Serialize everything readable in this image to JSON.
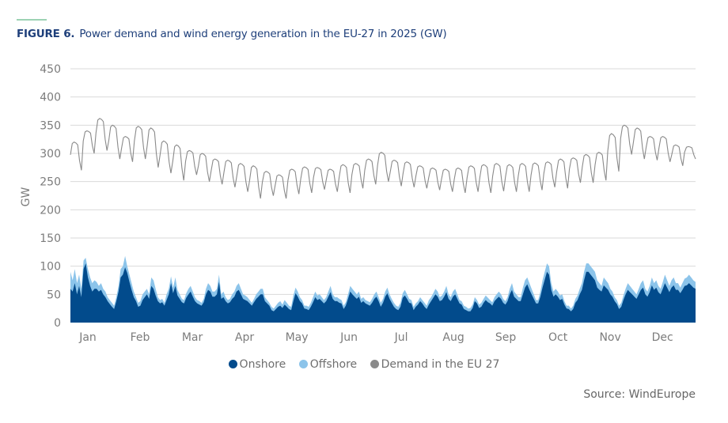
{
  "figure": {
    "label": "FIGURE 6.",
    "title": "Power demand and wind energy generation in the EU-27 in 2025 (GW)",
    "source": "Source: WindEurope"
  },
  "legend": [
    {
      "name": "Onshore",
      "color": "#024b8c"
    },
    {
      "name": "Offshore",
      "color": "#8cc4ea"
    },
    {
      "name": "Demand in the EU 27",
      "color": "#8a8a8a"
    }
  ],
  "chart_data": {
    "type": "area",
    "title": "Power demand and wind energy generation in the EU-27 in 2025 (GW)",
    "xlabel": "",
    "ylabel": "GW",
    "ylim": [
      0,
      450
    ],
    "yticks": [
      0,
      50,
      100,
      150,
      200,
      250,
      300,
      350,
      400,
      450
    ],
    "xticks": [
      "Jan",
      "Feb",
      "Mar",
      "Apr",
      "May",
      "Jun",
      "Jul",
      "Aug",
      "Sep",
      "Oct",
      "Nov",
      "Dec"
    ],
    "grid": true,
    "legend_position": "bottom",
    "x_unit": "approx. 2 samples per week-day cycle, Jan to mid-Dec 2025 (values estimated)",
    "series": [
      {
        "name": "Demand in the EU 27",
        "type": "line",
        "color": "#8a8a8a",
        "weekly_high": [
          320,
          340,
          362,
          350,
          330,
          348,
          345,
          322,
          315,
          305,
          300,
          290,
          288,
          282,
          278,
          268,
          262,
          272,
          276,
          275,
          272,
          280,
          282,
          290,
          302,
          288,
          285,
          278,
          274,
          272,
          274,
          278,
          280,
          282,
          280,
          282,
          283,
          285,
          290,
          292,
          298,
          302,
          335,
          350,
          345,
          330,
          330,
          315,
          312
        ],
        "weekly_low": [
          270,
          300,
          305,
          290,
          285,
          290,
          275,
          265,
          252,
          262,
          250,
          245,
          240,
          232,
          220,
          225,
          220,
          228,
          230,
          236,
          232,
          230,
          238,
          245,
          250,
          242,
          240,
          238,
          235,
          232,
          230,
          232,
          230,
          233,
          232,
          232,
          235,
          240,
          238,
          248,
          248,
          252,
          268,
          298,
          290,
          288,
          285,
          278,
          290
        ]
      },
      {
        "name": "Offshore",
        "type": "stacked-area",
        "color": "#8cc4ea",
        "values": [
          90,
          75,
          95,
          70,
          85,
          60,
          110,
          115,
          95,
          80,
          70,
          75,
          72,
          65,
          70,
          60,
          55,
          45,
          40,
          35,
          30,
          45,
          65,
          95,
          100,
          118,
          100,
          85,
          70,
          55,
          45,
          35,
          38,
          50,
          55,
          60,
          50,
          80,
          75,
          60,
          45,
          40,
          42,
          35,
          50,
          60,
          82,
          62,
          80,
          58,
          50,
          42,
          40,
          52,
          60,
          65,
          55,
          45,
          40,
          38,
          35,
          42,
          60,
          70,
          65,
          55,
          55,
          60,
          85,
          50,
          55,
          45,
          40,
          42,
          50,
          55,
          65,
          70,
          60,
          50,
          48,
          45,
          40,
          35,
          42,
          50,
          55,
          60,
          60,
          45,
          40,
          35,
          28,
          25,
          30,
          35,
          38,
          32,
          40,
          35,
          30,
          28,
          48,
          62,
          55,
          45,
          40,
          30,
          30,
          28,
          35,
          45,
          55,
          48,
          50,
          45,
          40,
          45,
          55,
          65,
          50,
          45,
          45,
          42,
          40,
          30,
          36,
          50,
          65,
          60,
          55,
          50,
          55,
          42,
          45,
          40,
          38,
          36,
          42,
          50,
          55,
          45,
          35,
          42,
          55,
          62,
          50,
          42,
          35,
          30,
          28,
          35,
          52,
          58,
          50,
          42,
          40,
          28,
          34,
          38,
          45,
          40,
          35,
          30,
          40,
          45,
          52,
          60,
          55,
          45,
          48,
          55,
          65,
          50,
          45,
          55,
          60,
          50,
          40,
          38,
          30,
          28,
          25,
          26,
          32,
          45,
          40,
          32,
          35,
          42,
          48,
          44,
          40,
          36,
          45,
          50,
          55,
          50,
          42,
          38,
          45,
          60,
          70,
          55,
          50,
          45,
          45,
          62,
          75,
          80,
          70,
          60,
          50,
          40,
          40,
          55,
          75,
          90,
          105,
          100,
          70,
          55,
          60,
          55,
          48,
          50,
          38,
          30,
          30,
          25,
          30,
          42,
          48,
          60,
          70,
          90,
          105,
          105,
          100,
          95,
          90,
          75,
          70,
          65,
          80,
          75,
          70,
          60,
          55,
          45,
          40,
          30,
          35,
          48,
          60,
          70,
          65,
          60,
          55,
          50,
          60,
          70,
          75,
          60,
          55,
          65,
          80,
          70,
          75,
          65,
          60,
          72,
          85,
          75,
          65,
          75,
          80,
          70,
          70,
          62,
          70,
          78,
          80,
          85,
          80,
          75,
          72
        ]
      },
      {
        "name": "Onshore",
        "type": "stacked-area",
        "color": "#024b8c",
        "values": [
          60,
          55,
          70,
          50,
          65,
          45,
          95,
          105,
          80,
          65,
          55,
          60,
          60,
          55,
          58,
          50,
          45,
          38,
          33,
          28,
          24,
          38,
          55,
          80,
          85,
          98,
          88,
          72,
          58,
          45,
          38,
          28,
          30,
          40,
          45,
          50,
          42,
          65,
          60,
          48,
          38,
          34,
          36,
          30,
          40,
          50,
          70,
          52,
          65,
          48,
          42,
          36,
          34,
          44,
          50,
          55,
          46,
          38,
          34,
          32,
          30,
          36,
          50,
          58,
          55,
          46,
          46,
          50,
          72,
          42,
          45,
          38,
          34,
          36,
          42,
          46,
          55,
          58,
          50,
          42,
          40,
          38,
          34,
          30,
          36,
          42,
          46,
          50,
          50,
          38,
          34,
          30,
          22,
          20,
          24,
          28,
          30,
          26,
          32,
          28,
          24,
          22,
          38,
          52,
          46,
          38,
          34,
          25,
          24,
          22,
          28,
          36,
          45,
          40,
          42,
          38,
          34,
          38,
          46,
          54,
          42,
          38,
          38,
          35,
          34,
          24,
          30,
          42,
          55,
          50,
          46,
          42,
          46,
          35,
          38,
          34,
          32,
          30,
          35,
          42,
          46,
          38,
          28,
          35,
          46,
          52,
          42,
          35,
          28,
          24,
          22,
          28,
          44,
          48,
          42,
          35,
          34,
          22,
          28,
          32,
          38,
          34,
          28,
          24,
          32,
          38,
          44,
          50,
          46,
          38,
          40,
          46,
          54,
          42,
          38,
          46,
          50,
          42,
          34,
          32,
          24,
          22,
          20,
          20,
          26,
          38,
          34,
          26,
          28,
          35,
          40,
          36,
          34,
          30,
          38,
          42,
          46,
          42,
          35,
          32,
          38,
          50,
          58,
          46,
          42,
          38,
          38,
          50,
          62,
          68,
          58,
          50,
          42,
          34,
          34,
          46,
          62,
          76,
          90,
          85,
          58,
          46,
          50,
          46,
          40,
          42,
          32,
          25,
          24,
          20,
          24,
          35,
          40,
          50,
          58,
          75,
          90,
          90,
          85,
          80,
          75,
          62,
          58,
          55,
          66,
          62,
          58,
          50,
          46,
          38,
          33,
          24,
          28,
          40,
          50,
          58,
          54,
          50,
          46,
          42,
          50,
          58,
          62,
          50,
          46,
          54,
          66,
          58,
          62,
          54,
          50,
          60,
          70,
          62,
          54,
          62,
          66,
          58,
          58,
          52,
          58,
          65,
          66,
          70,
          66,
          62,
          60
        ]
      }
    ]
  }
}
